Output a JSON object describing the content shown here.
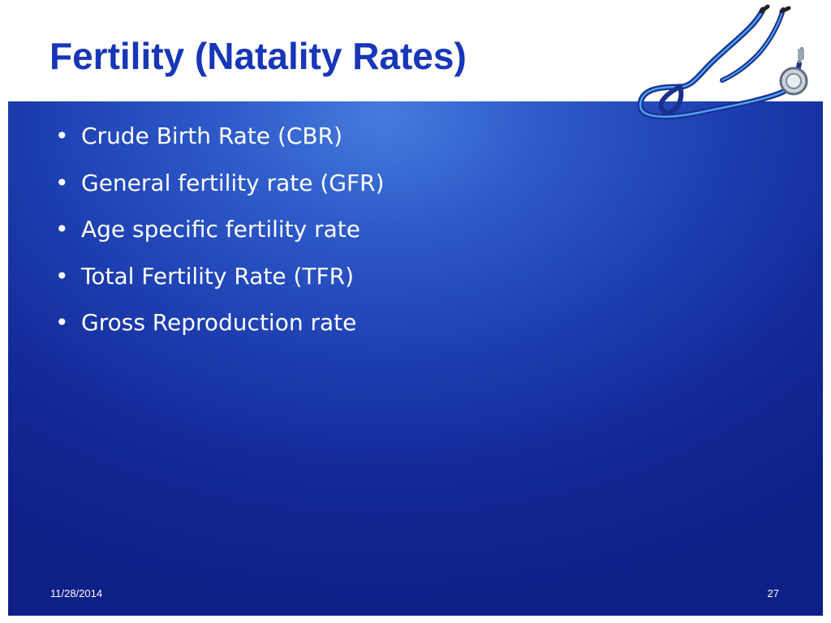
{
  "slide": {
    "title": "Fertility (Natality Rates)",
    "bullets": [
      "Crude Birth Rate (CBR)",
      "General fertility rate (GFR)",
      "Age specific fertility rate",
      "Total Fertility Rate (TFR)",
      "Gross Reproduction rate"
    ],
    "bullet_glyph": "•",
    "footer_date": "11/28/2014",
    "page_number": "27",
    "decoration_icon": "stethoscope-icon"
  },
  "colors": {
    "title": "#1736b8",
    "panel_dark": "#0f1f88",
    "panel_light": "#467bdb",
    "text": "#ffffff"
  }
}
